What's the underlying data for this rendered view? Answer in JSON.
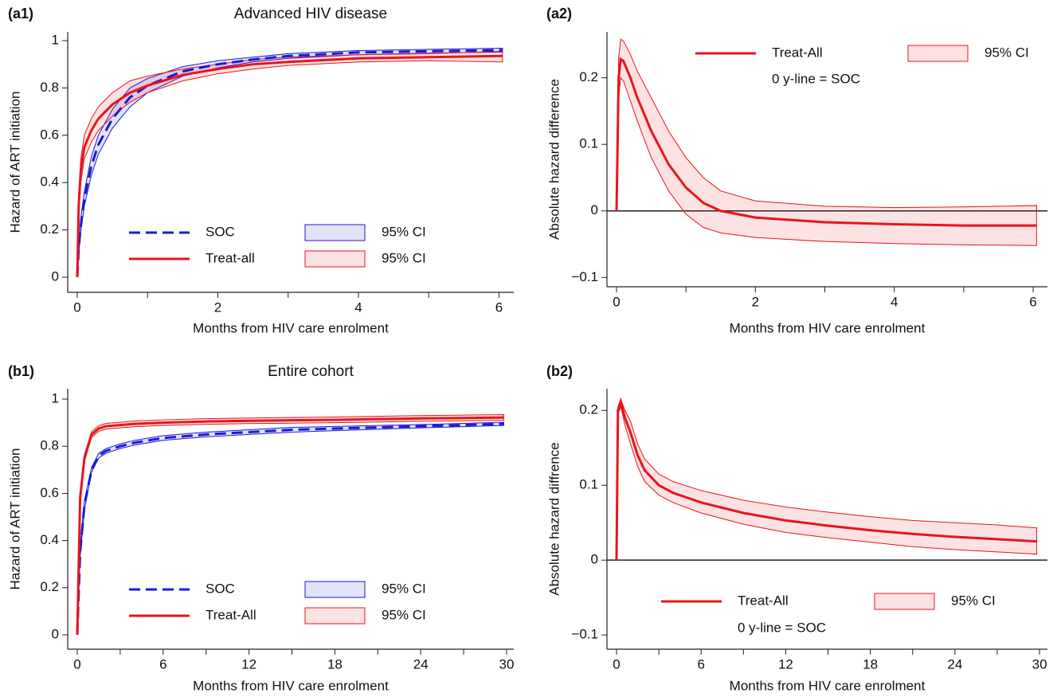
{
  "chart_data": [
    {
      "type": "line",
      "panel": "(a1)",
      "title": "Advanced HIV disease",
      "xlabel": "Months from HIV care enrolment",
      "ylabel": "Hazard of ART initiation",
      "x": [
        0,
        0.02,
        0.05,
        0.1,
        0.2,
        0.3,
        0.5,
        0.75,
        1,
        1.5,
        2,
        2.5,
        3,
        4,
        5,
        6.05
      ],
      "xlim": [
        -0.136,
        6.21
      ],
      "xticks": [
        0,
        2,
        4,
        6
      ],
      "xminor": [
        1,
        3,
        5
      ],
      "ylim": [
        -0.064,
        1.037
      ],
      "yticks": [
        0,
        0.2,
        0.4,
        0.6,
        0.8,
        1
      ],
      "legend": "lower center",
      "series": [
        {
          "name": "SOC",
          "color": "#1a1ad8",
          "style": "dashed",
          "values": [
            0,
            0.12,
            0.22,
            0.33,
            0.47,
            0.56,
            0.67,
            0.76,
            0.81,
            0.87,
            0.9,
            0.92,
            0.935,
            0.95,
            0.955,
            0.96
          ]
        },
        {
          "name": "95% CI",
          "color": "#1a1ad8",
          "lower": [
            0,
            0.1,
            0.19,
            0.3,
            0.43,
            0.52,
            0.63,
            0.72,
            0.78,
            0.85,
            0.885,
            0.91,
            0.925,
            0.94,
            0.947,
            0.952
          ],
          "upper": [
            0,
            0.14,
            0.25,
            0.36,
            0.51,
            0.6,
            0.71,
            0.8,
            0.84,
            0.89,
            0.915,
            0.93,
            0.945,
            0.958,
            0.963,
            0.968
          ]
        },
        {
          "name": "Treat-all",
          "color": "#e8141c",
          "style": "solid",
          "values": [
            0,
            0.3,
            0.45,
            0.55,
            0.62,
            0.67,
            0.73,
            0.78,
            0.81,
            0.855,
            0.88,
            0.9,
            0.91,
            0.925,
            0.93,
            0.935
          ]
        },
        {
          "name": "95% CI",
          "color": "#e8141c",
          "lower": [
            0,
            0.25,
            0.4,
            0.5,
            0.57,
            0.62,
            0.68,
            0.74,
            0.78,
            0.83,
            0.86,
            0.88,
            0.895,
            0.91,
            0.915,
            0.91
          ],
          "upper": [
            0,
            0.35,
            0.5,
            0.6,
            0.67,
            0.72,
            0.78,
            0.83,
            0.85,
            0.88,
            0.9,
            0.92,
            0.93,
            0.94,
            0.945,
            0.955
          ]
        }
      ]
    },
    {
      "type": "line",
      "panel": "(a2)",
      "xlabel": "Months from HIV care enrolment",
      "ylabel": "Absolute hazard difference",
      "annotation": "0 y-line = SOC",
      "x": [
        0,
        0.03,
        0.06,
        0.1,
        0.2,
        0.3,
        0.5,
        0.75,
        1,
        1.25,
        1.5,
        2,
        3,
        4,
        5,
        6.05
      ],
      "xlim": [
        -0.138,
        6.206
      ],
      "xticks": [
        0,
        2,
        4,
        6
      ],
      "xminor": [
        1,
        3,
        5
      ],
      "ylim": [
        -0.114,
        0.269
      ],
      "yticks": [
        {
          "value": -0.1,
          "label": "−0.1"
        },
        0,
        0.1,
        0.2
      ],
      "hline": 0,
      "legend": "upper right",
      "series": [
        {
          "name": "Treat-All",
          "color": "#e8141c",
          "style": "solid",
          "values": [
            0,
            0.2,
            0.228,
            0.225,
            0.2,
            0.17,
            0.12,
            0.07,
            0.035,
            0.012,
            0,
            -0.01,
            -0.017,
            -0.02,
            -0.022,
            -0.022
          ]
        },
        {
          "name": "95% CI",
          "color": "#e8141c",
          "lower": [
            0,
            0.17,
            0.2,
            0.195,
            0.165,
            0.135,
            0.08,
            0.03,
            -0.005,
            -0.025,
            -0.033,
            -0.04,
            -0.046,
            -0.049,
            -0.051,
            -0.052
          ],
          "upper": [
            0,
            0.23,
            0.258,
            0.255,
            0.235,
            0.21,
            0.17,
            0.12,
            0.08,
            0.05,
            0.03,
            0.015,
            0.007,
            0.005,
            0.006,
            0.008
          ]
        }
      ]
    },
    {
      "type": "line",
      "panel": "(b1)",
      "title": "Entire cohort",
      "xlabel": "Months from HIV care enrolment",
      "ylabel": "Hazard of ART initiation",
      "x": [
        0,
        0.2,
        0.5,
        1,
        1.5,
        2,
        3,
        4,
        6,
        9,
        12,
        15,
        18,
        21,
        24,
        27,
        29.8
      ],
      "xlim": [
        -0.668,
        30.5
      ],
      "xticks": [
        0,
        6,
        12,
        18,
        24,
        30
      ],
      "xminor": [
        3,
        9,
        15,
        21,
        27
      ],
      "ylim": [
        -0.061,
        1.044
      ],
      "yticks": [
        0,
        0.2,
        0.4,
        0.6,
        0.8,
        1
      ],
      "legend": "lower center",
      "series": [
        {
          "name": "SOC",
          "color": "#1a1ad8",
          "style": "dashed",
          "values": [
            0,
            0.35,
            0.55,
            0.7,
            0.76,
            0.78,
            0.8,
            0.815,
            0.835,
            0.85,
            0.86,
            0.87,
            0.875,
            0.88,
            0.885,
            0.89,
            0.895
          ]
        },
        {
          "name": "95% CI",
          "color": "#1a1ad8",
          "lower": [
            0,
            0.33,
            0.53,
            0.69,
            0.75,
            0.77,
            0.79,
            0.805,
            0.825,
            0.84,
            0.85,
            0.86,
            0.866,
            0.872,
            0.878,
            0.883,
            0.888
          ],
          "upper": [
            0,
            0.37,
            0.57,
            0.71,
            0.77,
            0.79,
            0.81,
            0.825,
            0.845,
            0.86,
            0.87,
            0.88,
            0.884,
            0.888,
            0.892,
            0.897,
            0.902
          ]
        },
        {
          "name": "Treat-All",
          "color": "#e8141c",
          "style": "solid",
          "values": [
            0,
            0.58,
            0.75,
            0.85,
            0.875,
            0.885,
            0.89,
            0.895,
            0.9,
            0.905,
            0.908,
            0.91,
            0.912,
            0.915,
            0.918,
            0.92,
            0.922
          ]
        },
        {
          "name": "95% CI",
          "color": "#e8141c",
          "lower": [
            0,
            0.56,
            0.735,
            0.838,
            0.863,
            0.873,
            0.878,
            0.883,
            0.888,
            0.893,
            0.896,
            0.898,
            0.9,
            0.903,
            0.906,
            0.908,
            0.91
          ],
          "upper": [
            0,
            0.6,
            0.765,
            0.862,
            0.887,
            0.897,
            0.902,
            0.907,
            0.912,
            0.917,
            0.92,
            0.922,
            0.924,
            0.927,
            0.93,
            0.932,
            0.934
          ]
        }
      ]
    },
    {
      "type": "line",
      "panel": "(b2)",
      "xlabel": "Months from HIV care enrolment",
      "ylabel": "Absolute hazard diffrence",
      "annotation": "0 y-line = SOC",
      "x": [
        0,
        0.1,
        0.3,
        0.6,
        1,
        1.5,
        2,
        3,
        4,
        6,
        9,
        12,
        15,
        18,
        21,
        24,
        27,
        29.8
      ],
      "xlim": [
        -0.678,
        30.56
      ],
      "xticks": [
        0,
        6,
        12,
        18,
        24,
        30
      ],
      "xminor": [
        3,
        9,
        15,
        21,
        27
      ],
      "ylim": [
        -0.119,
        0.229
      ],
      "yticks": [
        {
          "value": -0.1,
          "label": "−0.1"
        },
        0,
        0.1,
        0.2
      ],
      "hline": 0,
      "legend": "lower right",
      "series": [
        {
          "name": "Treat-All",
          "color": "#e8141c",
          "style": "solid",
          "values": [
            0,
            0.2,
            0.212,
            0.19,
            0.17,
            0.14,
            0.12,
            0.1,
            0.09,
            0.077,
            0.063,
            0.053,
            0.046,
            0.04,
            0.035,
            0.031,
            0.028,
            0.025
          ]
        },
        {
          "name": "95% CI",
          "color": "#e8141c",
          "lower": [
            0,
            0.195,
            0.205,
            0.18,
            0.155,
            0.125,
            0.105,
            0.087,
            0.077,
            0.063,
            0.048,
            0.037,
            0.03,
            0.024,
            0.018,
            0.014,
            0.011,
            0.008
          ],
          "upper": [
            0,
            0.205,
            0.215,
            0.2,
            0.185,
            0.155,
            0.135,
            0.115,
            0.105,
            0.093,
            0.08,
            0.071,
            0.064,
            0.058,
            0.053,
            0.05,
            0.047,
            0.043
          ]
        }
      ]
    }
  ]
}
